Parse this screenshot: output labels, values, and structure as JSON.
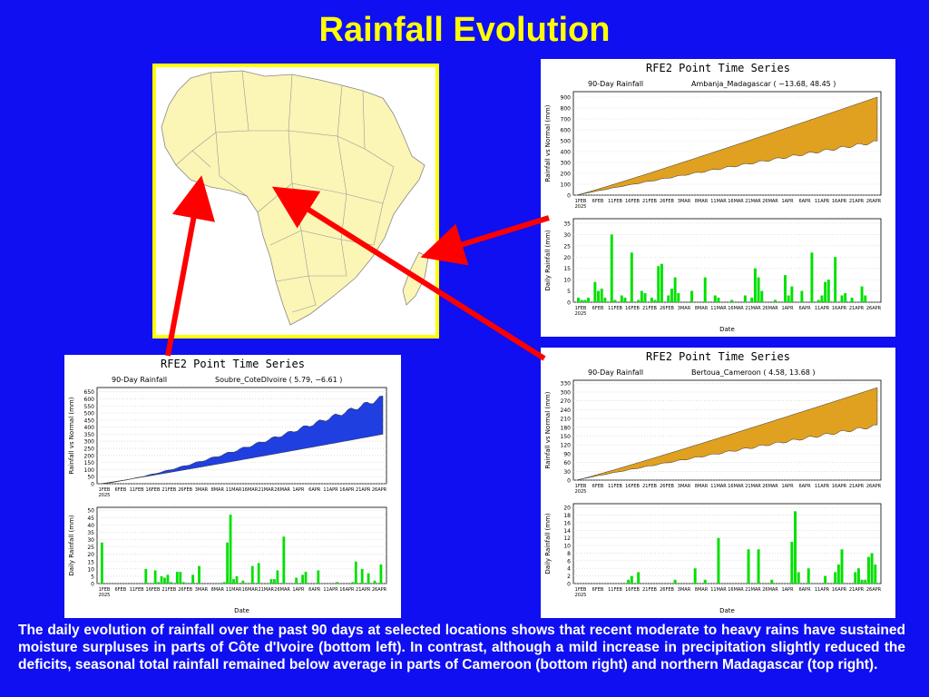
{
  "title": "Rainfall Evolution",
  "caption": "The daily evolution of rainfall over the past 90 days at selected locations shows that recent moderate to heavy rains have sustained moisture surpluses in parts of Côte d'Ivoire (bottom left). In contrast, although a mild increase in precipitation slightly reduced the deficits, seasonal total rainfall remained below average in parts of Cameroon (bottom right) and northern Madagascar (top right).",
  "colors": {
    "background": "#0f0ff2",
    "title": "#ffff00",
    "map_frame": "#ffff00",
    "land": "#fbf5b6",
    "arrow": "#ff0000",
    "deficit_fill": "#e0a020",
    "surplus_fill": "#1f3fe0",
    "daily_bar": "#00e000"
  },
  "map": {
    "icon": "africa-map"
  },
  "x_tick_labels": [
    "1FEB",
    "6FEB",
    "11FEB",
    "16FEB",
    "21FEB",
    "26FEB",
    "3MAR",
    "8MAR",
    "11MAR",
    "16MAR",
    "21MAR",
    "26MAR",
    "1APR",
    "6APR",
    "11APR",
    "16APR",
    "21APR",
    "26APR"
  ],
  "year_label": "2025",
  "chart_data": [
    {
      "id": "madagascar",
      "type": "area",
      "header": "RFE2 Point Time Series",
      "subtitle_left": "90-Day Rainfall",
      "subtitle_right": "Ambanja_Madagascar ( −13.68, 48.45 )",
      "top": {
        "ylabel": "Rainfall vs Normal (mm)",
        "ylim": [
          0,
          950
        ],
        "yticks": [
          0,
          100,
          200,
          300,
          400,
          500,
          600,
          700,
          800,
          900
        ],
        "normal_end": 900,
        "actual_end": 490,
        "relation": "actual below normal (deficit)"
      },
      "bottom": {
        "ylabel": "Daily Rainfall (mm)",
        "xlabel": "Date",
        "ylim": [
          0,
          37
        ],
        "yticks": [
          0,
          5,
          10,
          15,
          20,
          25,
          30,
          35
        ],
        "values": [
          2,
          1,
          1,
          2,
          0,
          9,
          5,
          6,
          2,
          0,
          30,
          1,
          0,
          3,
          2,
          0,
          22,
          0,
          1,
          5,
          4,
          0,
          2,
          1,
          16,
          17,
          0,
          3,
          6,
          11,
          4,
          0,
          0,
          0,
          5,
          0,
          0,
          0,
          11,
          0,
          0,
          3,
          2,
          0,
          0,
          0,
          1,
          0,
          0,
          0,
          3,
          0,
          2,
          15,
          11,
          5,
          0,
          0,
          0,
          1,
          0,
          0,
          12,
          3,
          7,
          0,
          0,
          5,
          0,
          0,
          22,
          0,
          1,
          3,
          9,
          10,
          0,
          20,
          0,
          3,
          4,
          0,
          2,
          0,
          0,
          7,
          3,
          0,
          0,
          0
        ]
      }
    },
    {
      "id": "cotedivoire",
      "type": "area",
      "header": "RFE2 Point Time Series",
      "subtitle_left": "90-Day Rainfall",
      "subtitle_right": "Soubre_CoteDIvoire ( 5.79, −6.61 )",
      "top": {
        "ylabel": "Rainfall vs Normal (mm)",
        "ylim": [
          0,
          680
        ],
        "yticks": [
          0,
          50,
          100,
          150,
          200,
          250,
          300,
          350,
          400,
          450,
          500,
          550,
          600,
          650
        ],
        "normal_end": 350,
        "actual_end": 610,
        "relation": "actual above normal (surplus)"
      },
      "bottom": {
        "ylabel": "Daily Rainfall (mm)",
        "xlabel": "Date",
        "ylim": [
          0,
          52
        ],
        "yticks": [
          0,
          5,
          10,
          15,
          20,
          25,
          30,
          35,
          40,
          45,
          50
        ],
        "values": [
          28,
          0,
          0,
          0,
          0,
          0,
          0,
          0,
          0,
          0,
          0,
          0,
          0,
          0,
          10,
          0,
          0,
          9,
          1,
          5,
          4,
          6,
          1,
          0,
          8,
          8,
          1,
          0,
          0,
          6,
          0,
          12,
          0,
          0,
          0,
          0,
          0,
          0,
          0,
          1,
          28,
          47,
          3,
          5,
          0,
          2,
          0,
          0,
          12,
          0,
          14,
          0,
          0,
          0,
          3,
          3,
          9,
          0,
          32,
          0,
          0,
          0,
          4,
          0,
          6,
          8,
          0,
          0,
          0,
          9,
          0,
          0,
          0,
          0,
          0,
          1,
          0,
          0,
          0,
          0,
          1,
          15,
          0,
          10,
          0,
          7,
          0,
          2,
          0,
          13
        ]
      }
    },
    {
      "id": "cameroon",
      "type": "area",
      "header": "RFE2 Point Time Series",
      "subtitle_left": "90-Day Rainfall",
      "subtitle_right": "Bertoua_Cameroon ( 4.58, 13.68 )",
      "top": {
        "ylabel": "Rainfall vs Normal (mm)",
        "ylim": [
          0,
          340
        ],
        "yticks": [
          0,
          30,
          60,
          90,
          120,
          150,
          180,
          210,
          240,
          270,
          300,
          330
        ],
        "normal_end": 315,
        "actual_end": 185,
        "relation": "actual below normal (deficit)"
      },
      "bottom": {
        "ylabel": "Daily Rainfall (mm)",
        "xlabel": "Date",
        "ylim": [
          0,
          21
        ],
        "yticks": [
          0,
          2,
          4,
          6,
          8,
          10,
          12,
          14,
          16,
          18,
          20
        ],
        "values": [
          0,
          0,
          0,
          0,
          0,
          0,
          0,
          0,
          0,
          0,
          0,
          0,
          0,
          0,
          0,
          1,
          2,
          0,
          3,
          0,
          0,
          0,
          0,
          0,
          0,
          0,
          0,
          0,
          0,
          1,
          0,
          0,
          0,
          0,
          0,
          4,
          0,
          0,
          1,
          0,
          0,
          0,
          12,
          0,
          0,
          0,
          0,
          0,
          0,
          0,
          0,
          9,
          0,
          0,
          9,
          0,
          0,
          0,
          1,
          0,
          0,
          0,
          0,
          0,
          11,
          19,
          3,
          0,
          0,
          4,
          0,
          0,
          0,
          0,
          2,
          0,
          0,
          3,
          5,
          9,
          0,
          0,
          0,
          3,
          4,
          1,
          1,
          7,
          8,
          5
        ]
      }
    }
  ]
}
